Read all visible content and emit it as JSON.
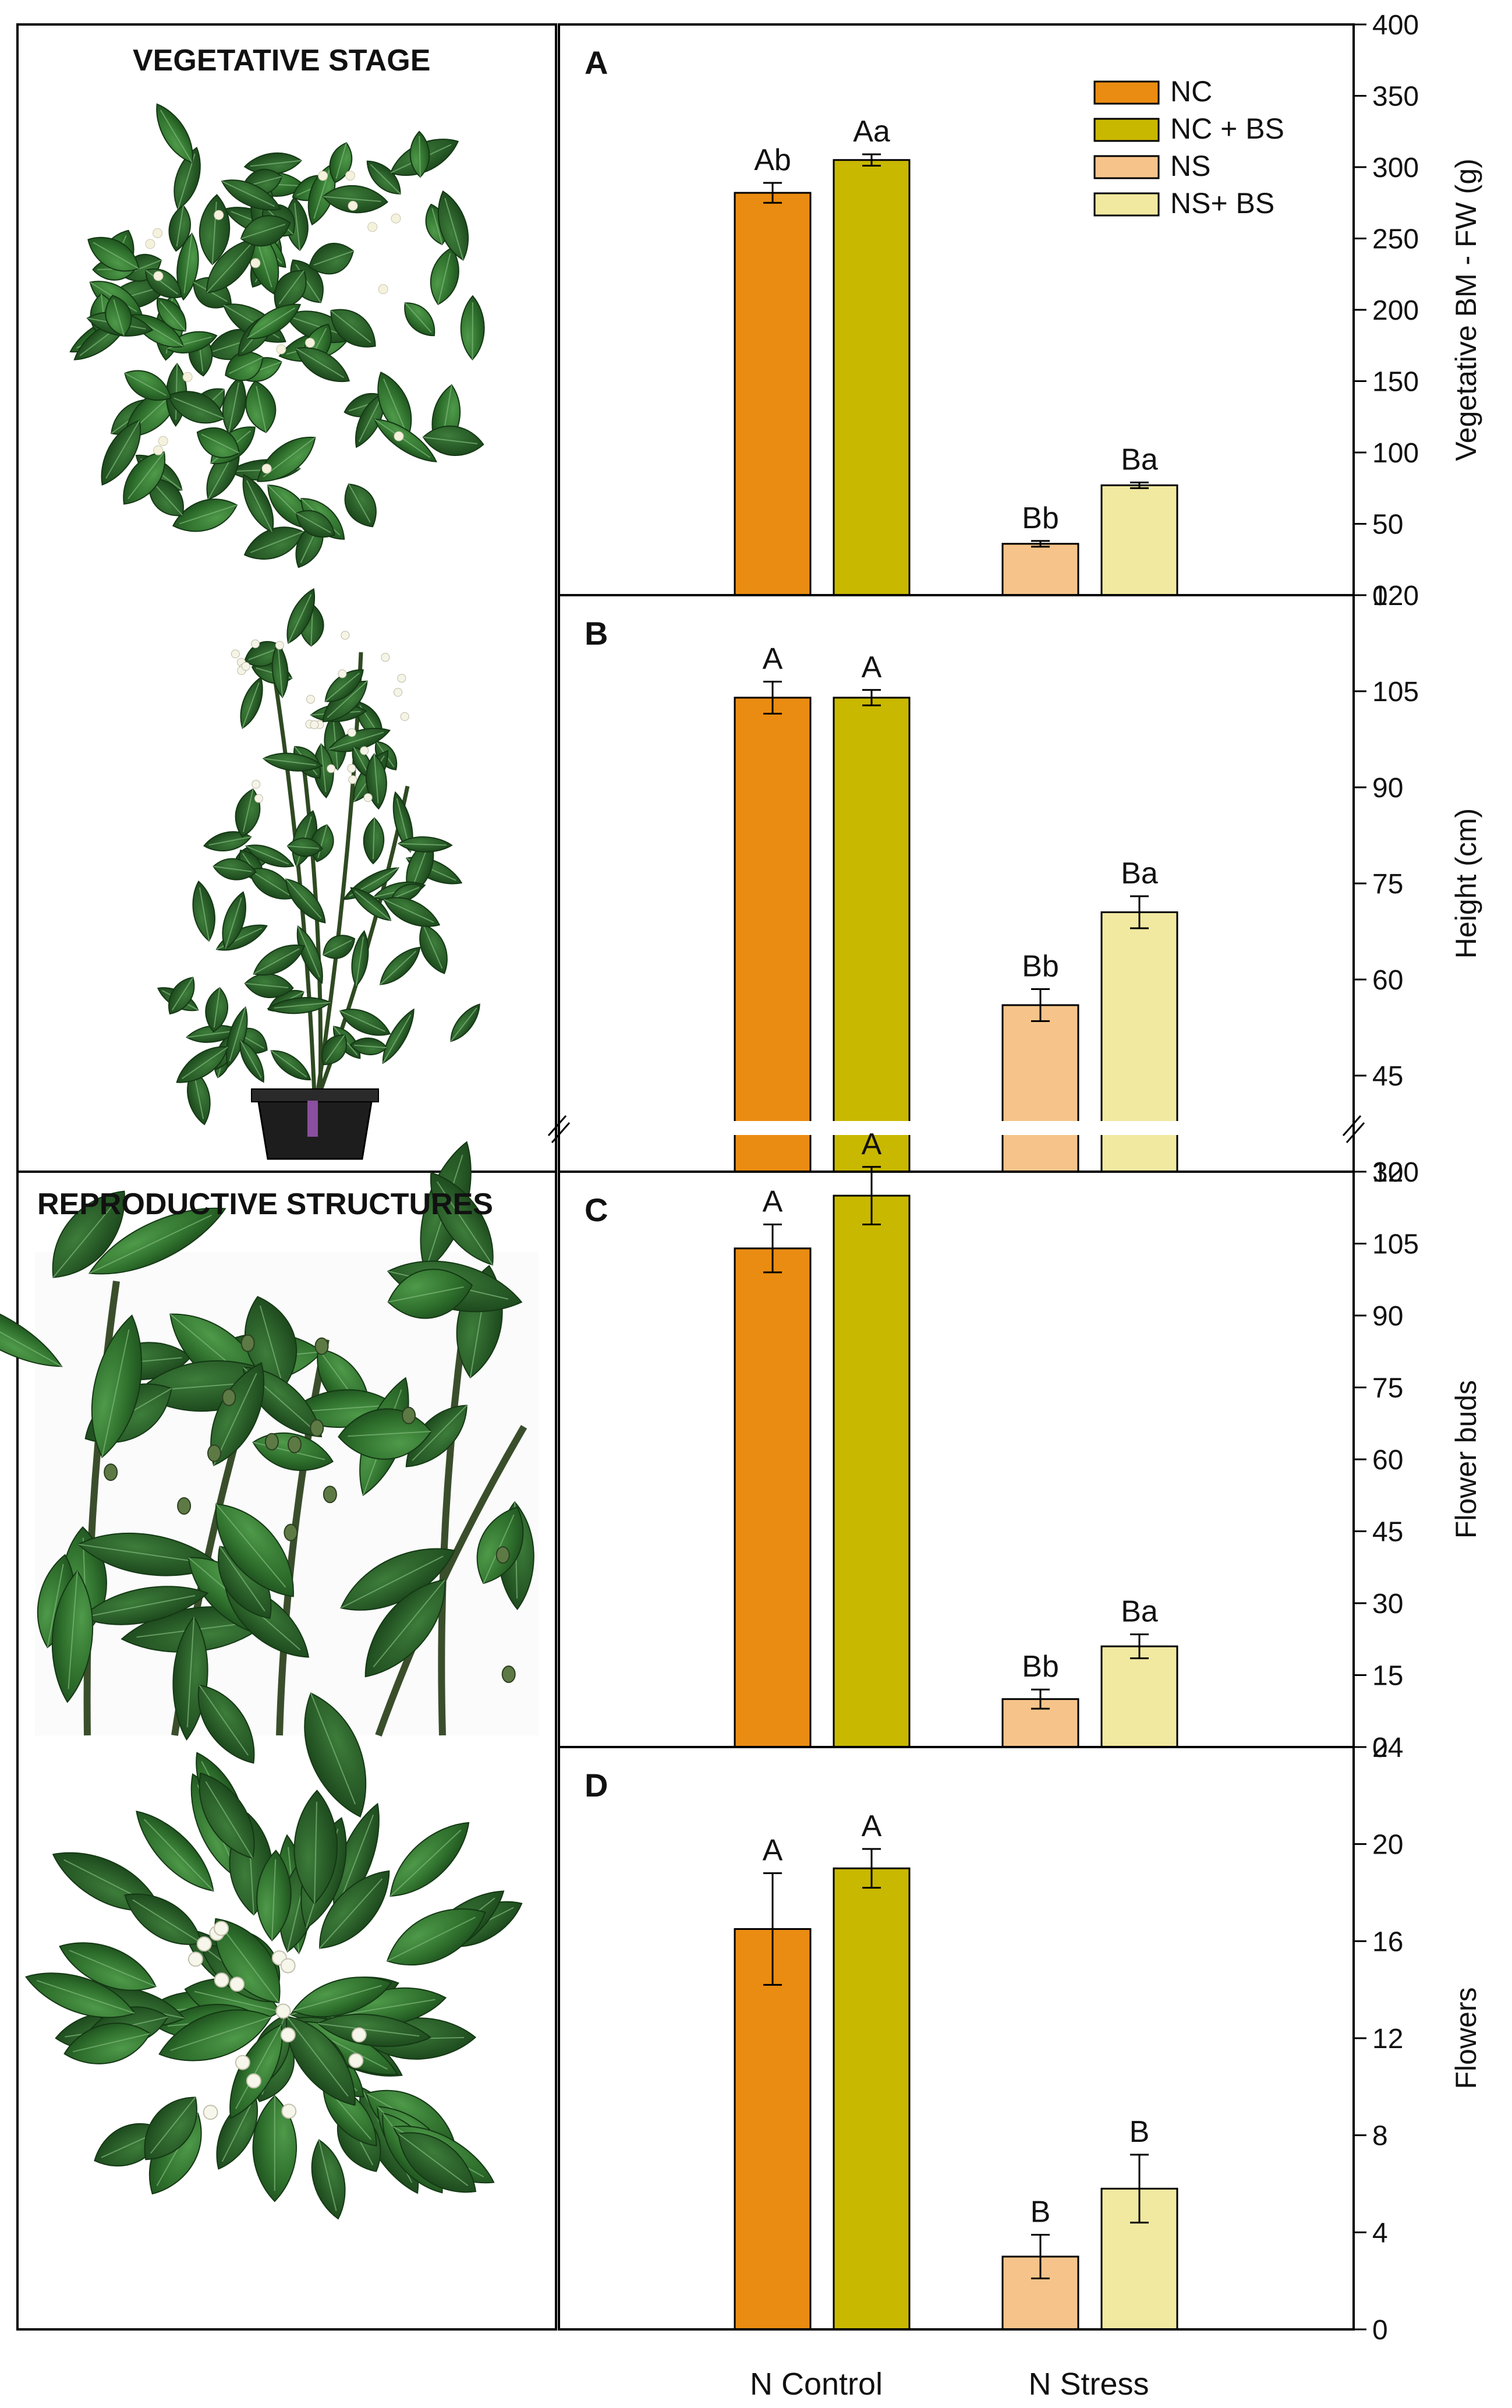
{
  "sections": {
    "vegetative_title": "VEGETATIVE STAGE",
    "reproductive_title": "REPRODUCTIVE STRUCTURES"
  },
  "legend": [
    {
      "label": "NC",
      "color": "#EA8C12"
    },
    {
      "label": "NC + BS",
      "color": "#C9B800"
    },
    {
      "label": "NS",
      "color": "#F6C48A"
    },
    {
      "label": "NS+ BS",
      "color": "#F1E9A0"
    }
  ],
  "x_groups": [
    "N Control",
    "N Stress"
  ],
  "chart_data": [
    {
      "type": "bar",
      "panel": "A",
      "ylabel": "Vegetative BM - FW (g)",
      "ylim": [
        0,
        400
      ],
      "yticks": [
        0,
        50,
        100,
        150,
        200,
        250,
        300,
        350,
        400
      ],
      "categories": [
        "N Control",
        "N Stress"
      ],
      "series": [
        {
          "name": "NC",
          "values": [
            282,
            null
          ],
          "errors": [
            7,
            null
          ],
          "letters": [
            "Ab",
            null
          ]
        },
        {
          "name": "NC + BS",
          "values": [
            305,
            null
          ],
          "errors": [
            4,
            null
          ],
          "letters": [
            "Aa",
            null
          ]
        },
        {
          "name": "NS",
          "values": [
            null,
            36
          ],
          "errors": [
            null,
            2
          ],
          "letters": [
            null,
            "Bb"
          ]
        },
        {
          "name": "NS+ BS",
          "values": [
            null,
            77
          ],
          "errors": [
            null,
            2
          ],
          "letters": [
            null,
            "Ba"
          ]
        }
      ]
    },
    {
      "type": "bar",
      "panel": "B",
      "ylabel": "Height (cm)",
      "ylim": [
        30,
        120
      ],
      "axis_break": true,
      "yticks": [
        30,
        45,
        60,
        75,
        90,
        105,
        120
      ],
      "categories": [
        "N Control",
        "N Stress"
      ],
      "series": [
        {
          "name": "NC",
          "values": [
            104,
            null
          ],
          "errors": [
            2.5,
            null
          ],
          "letters": [
            "A",
            null
          ]
        },
        {
          "name": "NC + BS",
          "values": [
            104,
            null
          ],
          "errors": [
            1.2,
            null
          ],
          "letters": [
            "A",
            null
          ]
        },
        {
          "name": "NS",
          "values": [
            null,
            56
          ],
          "errors": [
            null,
            2.5
          ],
          "letters": [
            null,
            "Bb"
          ]
        },
        {
          "name": "NS+ BS",
          "values": [
            null,
            70.5
          ],
          "errors": [
            null,
            2.5
          ],
          "letters": [
            null,
            "Ba"
          ]
        }
      ]
    },
    {
      "type": "bar",
      "panel": "C",
      "ylabel": "Flower buds",
      "ylim": [
        0,
        120
      ],
      "yticks": [
        0,
        15,
        30,
        45,
        60,
        75,
        90,
        105,
        120
      ],
      "categories": [
        "N Control",
        "N Stress"
      ],
      "series": [
        {
          "name": "NC",
          "values": [
            104,
            null
          ],
          "errors": [
            5,
            null
          ],
          "letters": [
            "A",
            null
          ]
        },
        {
          "name": "NC + BS",
          "values": [
            115,
            null
          ],
          "errors": [
            6,
            null
          ],
          "letters": [
            "A",
            null
          ]
        },
        {
          "name": "NS",
          "values": [
            null,
            10
          ],
          "errors": [
            null,
            2
          ],
          "letters": [
            null,
            "Bb"
          ]
        },
        {
          "name": "NS+ BS",
          "values": [
            null,
            21
          ],
          "errors": [
            null,
            2.5
          ],
          "letters": [
            null,
            "Ba"
          ]
        }
      ]
    },
    {
      "type": "bar",
      "panel": "D",
      "ylabel": "Flowers",
      "ylim": [
        0,
        24
      ],
      "yticks": [
        0,
        4,
        8,
        12,
        16,
        20,
        24
      ],
      "categories": [
        "N Control",
        "N Stress"
      ],
      "series": [
        {
          "name": "NC",
          "values": [
            16.5,
            null
          ],
          "errors": [
            2.3,
            null
          ],
          "letters": [
            "A",
            null
          ]
        },
        {
          "name": "NC + BS",
          "values": [
            19,
            null
          ],
          "errors": [
            0.8,
            null
          ],
          "letters": [
            "A",
            null
          ]
        },
        {
          "name": "NS",
          "values": [
            null,
            3
          ],
          "errors": [
            null,
            0.9
          ],
          "letters": [
            null,
            "B"
          ]
        },
        {
          "name": "NS+ BS",
          "values": [
            null,
            5.8
          ],
          "errors": [
            null,
            1.4
          ],
          "letters": [
            null,
            "B"
          ]
        }
      ]
    }
  ]
}
